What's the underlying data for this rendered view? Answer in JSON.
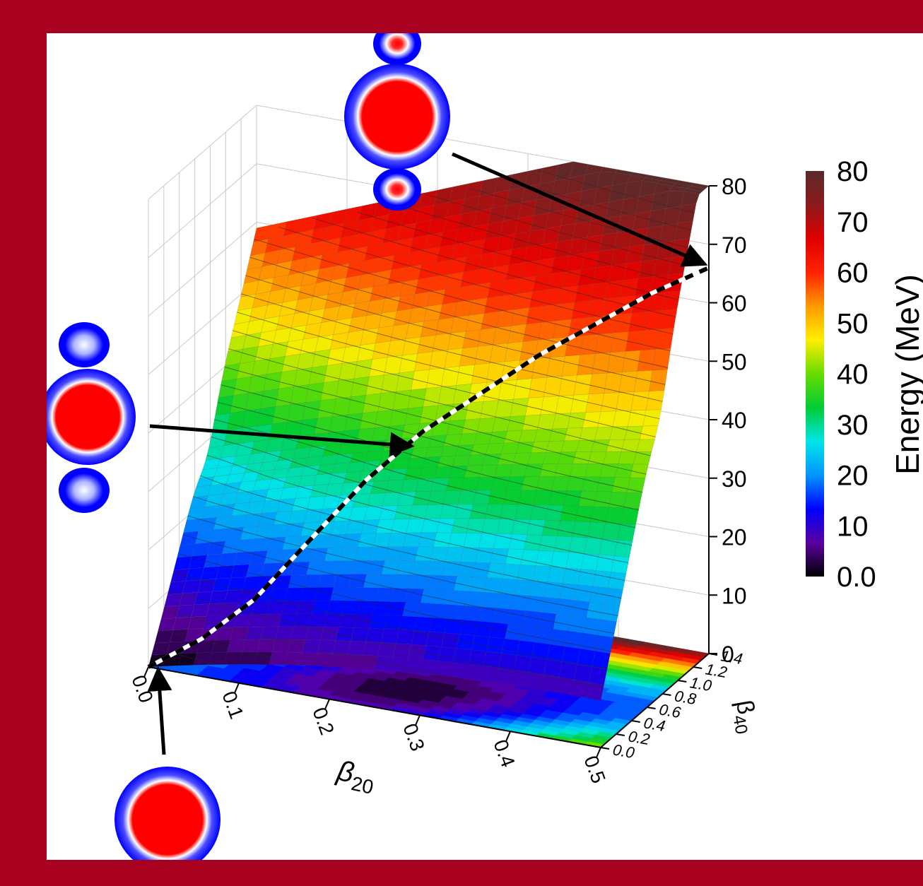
{
  "theme": {
    "frame_color": "#a8001e",
    "nucleus_inner": "#ff0000",
    "nucleus_outer": "#0000ff",
    "path_dash_a": "#000000",
    "path_dash_b": "#ffffff"
  },
  "colorscale": [
    "#000000",
    "#5a00a0",
    "#0000ff",
    "#0096ff",
    "#00e6e6",
    "#00cc33",
    "#66dd00",
    "#ffee00",
    "#ff9900",
    "#ff2200",
    "#e00000",
    "#8b1a1a",
    "#5a2a2a"
  ],
  "chart_data": {
    "type": "surface3d",
    "title": "",
    "zlabel": "",
    "x": {
      "label_main": "β",
      "label_sub": "20",
      "range": [
        0.0,
        0.5
      ],
      "ticks": [
        "0.0",
        "0.1",
        "0.2",
        "0.3",
        "0.4",
        "0.5"
      ]
    },
    "y": {
      "label_main": "β",
      "label_sub": "40",
      "range": [
        0.0,
        1.4
      ],
      "ticks": [
        "0.0",
        "0.2",
        "0.4",
        "0.6",
        "0.8",
        "1.0",
        "1.2",
        "1.4"
      ]
    },
    "z": {
      "range": [
        0,
        80
      ],
      "ticks": [
        "0",
        "10",
        "20",
        "30",
        "40",
        "50",
        "60",
        "70",
        "80"
      ]
    },
    "colorbar": {
      "label": "Energy (MeV)",
      "range": [
        0.0,
        80
      ],
      "ticks": [
        "0.0",
        "10",
        "20",
        "30",
        "40",
        "50",
        "60",
        "70",
        "80"
      ]
    },
    "contour_levels": 32,
    "fission_path": [
      {
        "beta20": 0.0,
        "beta40": 0.0,
        "energy": 0
      },
      {
        "beta20": 0.05,
        "beta40": 0.1,
        "energy": 5
      },
      {
        "beta20": 0.1,
        "beta40": 0.2,
        "energy": 12
      },
      {
        "beta20": 0.15,
        "beta40": 0.33,
        "energy": 22
      },
      {
        "beta20": 0.2,
        "beta40": 0.48,
        "energy": 32
      },
      {
        "beta20": 0.25,
        "beta40": 0.62,
        "energy": 40
      },
      {
        "beta20": 0.3,
        "beta40": 0.78,
        "energy": 46
      },
      {
        "beta20": 0.35,
        "beta40": 0.95,
        "energy": 52
      },
      {
        "beta20": 0.4,
        "beta40": 1.1,
        "energy": 57
      },
      {
        "beta20": 0.45,
        "beta40": 1.25,
        "energy": 62
      },
      {
        "beta20": 0.5,
        "beta40": 1.4,
        "energy": 66
      }
    ],
    "annotations": [
      {
        "shape": "spherical",
        "points_to_path_index": 0
      },
      {
        "shape": "scission-neck",
        "points_to_path_index": 5
      },
      {
        "shape": "separated-fragments",
        "points_to_path_index": 10
      }
    ]
  }
}
